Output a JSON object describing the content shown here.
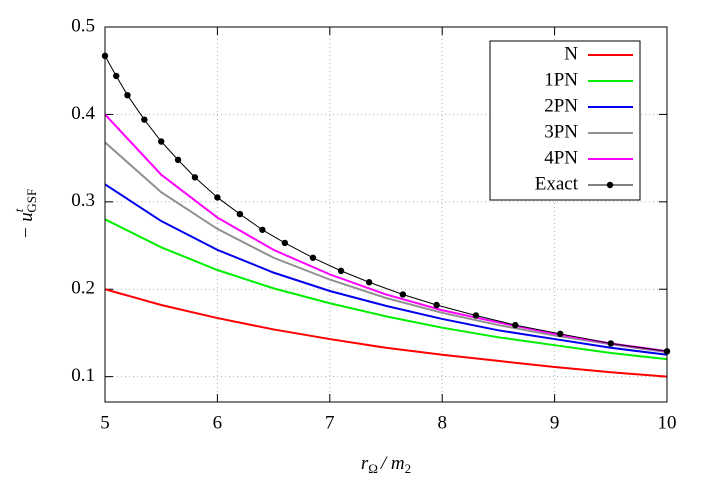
{
  "chart_data": {
    "type": "line",
    "xlabel": [
      "r",
      "Ω",
      "/ m",
      "2"
    ],
    "ylabel": [
      "− u",
      "t",
      "GSF"
    ],
    "x": [
      5,
      5.5,
      6,
      6.5,
      7,
      7.5,
      8,
      8.5,
      9,
      9.5,
      10
    ],
    "series": [
      {
        "name": "N",
        "color": "#ff0000",
        "values": [
          0.2,
          0.182,
          0.167,
          0.154,
          0.143,
          0.133,
          0.125,
          0.118,
          0.111,
          0.105,
          0.1
        ]
      },
      {
        "name": "1PN",
        "color": "#00ee00",
        "values": [
          0.28,
          0.248,
          0.222,
          0.201,
          0.184,
          0.169,
          0.156,
          0.145,
          0.136,
          0.127,
          0.12
        ]
      },
      {
        "name": "2PN",
        "color": "#0000ee",
        "values": [
          0.32,
          0.278,
          0.245,
          0.219,
          0.198,
          0.181,
          0.166,
          0.153,
          0.143,
          0.133,
          0.125
        ]
      },
      {
        "name": "3PN",
        "color": "#909090",
        "values": [
          0.368,
          0.311,
          0.269,
          0.236,
          0.211,
          0.19,
          0.173,
          0.159,
          0.147,
          0.137,
          0.128
        ]
      },
      {
        "name": "4PN",
        "color": "#ff00ff",
        "values": [
          0.4,
          0.331,
          0.282,
          0.245,
          0.217,
          0.194,
          0.176,
          0.162,
          0.149,
          0.138,
          0.129
        ]
      },
      {
        "name": "Exact",
        "color": "#000000",
        "marker": "circle",
        "x": [
          5,
          5.1,
          5.2,
          5.35,
          5.5,
          5.65,
          5.8,
          6,
          6.2,
          6.4,
          6.6,
          6.85,
          7.1,
          7.35,
          7.65,
          7.95,
          8.3,
          8.65,
          9.05,
          9.5,
          10
        ],
        "values": [
          0.467,
          0.444,
          0.422,
          0.394,
          0.369,
          0.348,
          0.328,
          0.305,
          0.286,
          0.268,
          0.253,
          0.236,
          0.221,
          0.208,
          0.194,
          0.182,
          0.17,
          0.159,
          0.149,
          0.138,
          0.129
        ]
      }
    ],
    "xlim": [
      5,
      10
    ],
    "ylim": [
      0.071,
      0.5
    ],
    "xticks": [
      5,
      6,
      7,
      8,
      9,
      10
    ],
    "yticks": [
      0.1,
      0.2,
      0.3,
      0.4,
      0.5
    ],
    "grid": true,
    "legend": "top-right"
  }
}
